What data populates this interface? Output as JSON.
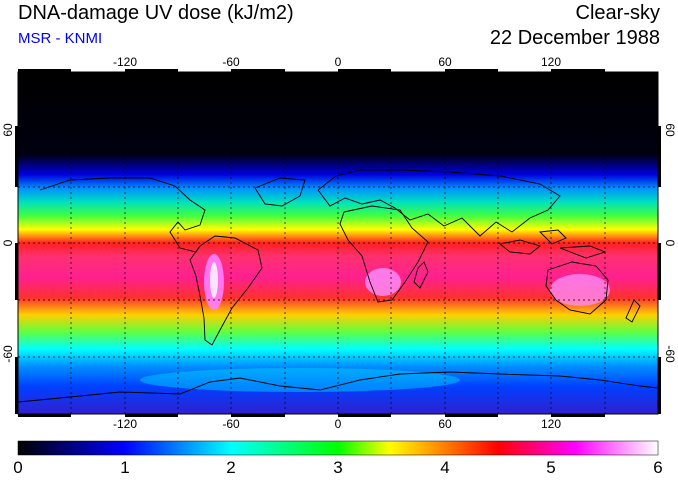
{
  "header": {
    "title": "DNA-damage UV dose (kJ/m2)",
    "source": "MSR - KNMI",
    "condition": "Clear-sky",
    "date": "22 December 1988"
  },
  "map": {
    "lon_ticks": [
      "-120",
      "-60",
      "0",
      "60",
      "120"
    ],
    "lat_ticks_left": [
      "60",
      "0",
      "-60"
    ],
    "lat_ticks_right": [
      "60",
      "0",
      "-60"
    ]
  },
  "colorbar": {
    "labels": [
      "0",
      "1",
      "2",
      "3",
      "4",
      "5",
      "6"
    ],
    "colors": [
      "#000000",
      "#0000ff",
      "#00ffff",
      "#00ff00",
      "#ffff00",
      "#ff0000",
      "#ff00ff",
      "#ffffff"
    ]
  }
}
